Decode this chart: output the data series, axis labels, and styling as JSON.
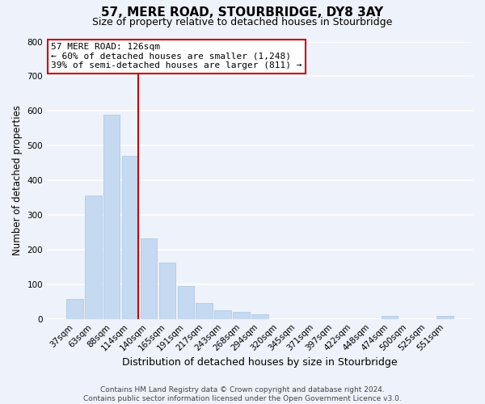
{
  "title": "57, MERE ROAD, STOURBRIDGE, DY8 3AY",
  "subtitle": "Size of property relative to detached houses in Stourbridge",
  "xlabel": "Distribution of detached houses by size in Stourbridge",
  "ylabel": "Number of detached properties",
  "bar_labels": [
    "37sqm",
    "63sqm",
    "88sqm",
    "114sqm",
    "140sqm",
    "165sqm",
    "191sqm",
    "217sqm",
    "243sqm",
    "268sqm",
    "294sqm",
    "320sqm",
    "345sqm",
    "371sqm",
    "397sqm",
    "422sqm",
    "448sqm",
    "474sqm",
    "500sqm",
    "525sqm",
    "551sqm"
  ],
  "bar_values": [
    57,
    355,
    588,
    470,
    232,
    163,
    95,
    47,
    25,
    20,
    14,
    0,
    0,
    0,
    0,
    0,
    0,
    8,
    0,
    0,
    8
  ],
  "bar_color": "#c5d9f0",
  "bar_edge_color": "#a8c4e0",
  "vline_color": "#cc0000",
  "vline_x_index": 3,
  "annotation_title": "57 MERE ROAD: 126sqm",
  "annotation_line1": "← 60% of detached houses are smaller (1,248)",
  "annotation_line2": "39% of semi-detached houses are larger (811) →",
  "annotation_box_facecolor": "white",
  "annotation_box_edgecolor": "#cc0000",
  "footer_line1": "Contains HM Land Registry data © Crown copyright and database right 2024.",
  "footer_line2": "Contains public sector information licensed under the Open Government Licence v3.0.",
  "ylim": [
    0,
    800
  ],
  "yticks": [
    0,
    100,
    200,
    300,
    400,
    500,
    600,
    700,
    800
  ],
  "background_color": "#eef2fb",
  "grid_color": "white",
  "title_fontsize": 11,
  "subtitle_fontsize": 9,
  "xlabel_fontsize": 9,
  "ylabel_fontsize": 8.5,
  "tick_fontsize": 7.5,
  "footer_fontsize": 6.5,
  "annotation_fontsize": 8
}
